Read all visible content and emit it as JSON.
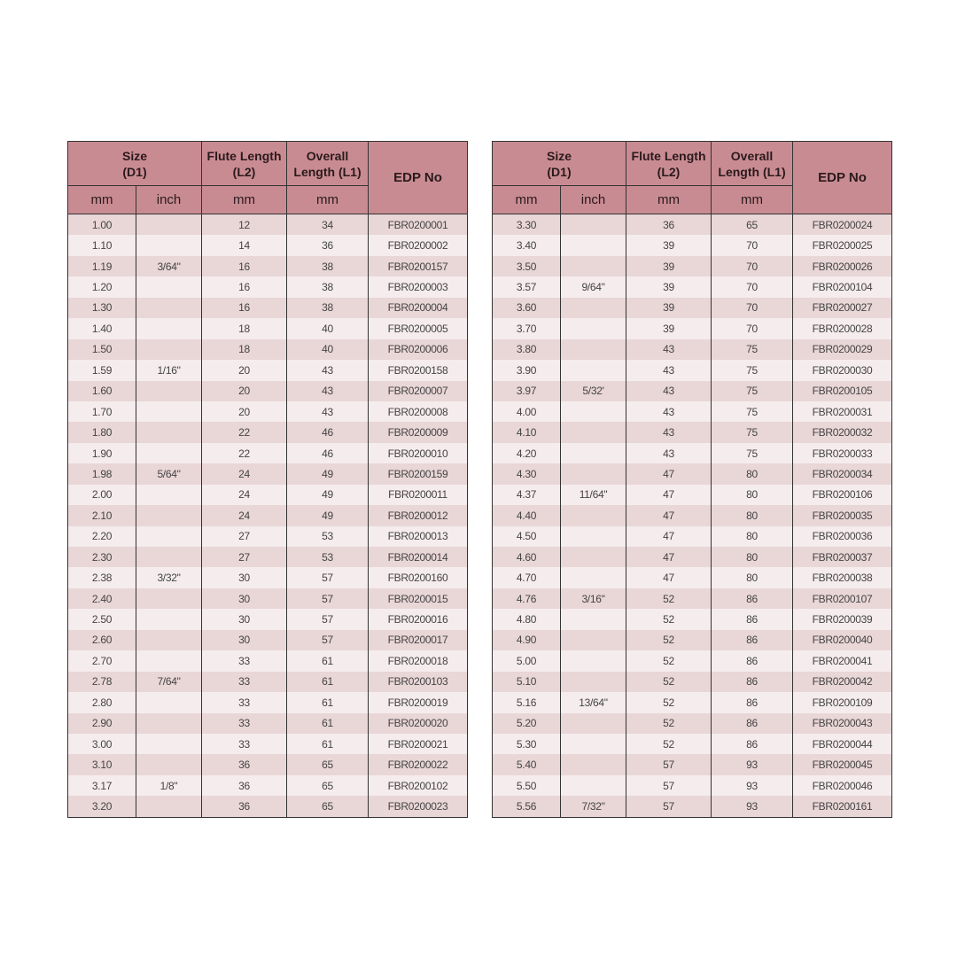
{
  "header": {
    "size": "Size",
    "size_sub": "(D1)",
    "flute": "Flute Length",
    "flute_sub": "(L2)",
    "overall": "Overall",
    "overall_sub": "Length (L1)",
    "edp": "EDP No",
    "mm": "mm",
    "inch": "inch"
  },
  "colors": {
    "header_bg": "#c98b92",
    "row_dark": "#e9d6d7",
    "row_light": "#f5eced"
  },
  "tables": [
    {
      "rows": [
        [
          "1.00",
          "",
          "12",
          "34",
          "FBR0200001"
        ],
        [
          "1.10",
          "",
          "14",
          "36",
          "FBR0200002"
        ],
        [
          "1.19",
          "3/64\"",
          "16",
          "38",
          "FBR0200157"
        ],
        [
          "1.20",
          "",
          "16",
          "38",
          "FBR0200003"
        ],
        [
          "1.30",
          "",
          "16",
          "38",
          "FBR0200004"
        ],
        [
          "1.40",
          "",
          "18",
          "40",
          "FBR0200005"
        ],
        [
          "1.50",
          "",
          "18",
          "40",
          "FBR0200006"
        ],
        [
          "1.59",
          "1/16\"",
          "20",
          "43",
          "FBR0200158"
        ],
        [
          "1.60",
          "",
          "20",
          "43",
          "FBR0200007"
        ],
        [
          "1.70",
          "",
          "20",
          "43",
          "FBR0200008"
        ],
        [
          "1.80",
          "",
          "22",
          "46",
          "FBR0200009"
        ],
        [
          "1.90",
          "",
          "22",
          "46",
          "FBR0200010"
        ],
        [
          "1.98",
          "5/64\"",
          "24",
          "49",
          "FBR0200159"
        ],
        [
          "2.00",
          "",
          "24",
          "49",
          "FBR0200011"
        ],
        [
          "2.10",
          "",
          "24",
          "49",
          "FBR0200012"
        ],
        [
          "2.20",
          "",
          "27",
          "53",
          "FBR0200013"
        ],
        [
          "2.30",
          "",
          "27",
          "53",
          "FBR0200014"
        ],
        [
          "2.38",
          "3/32\"",
          "30",
          "57",
          "FBR0200160"
        ],
        [
          "2.40",
          "",
          "30",
          "57",
          "FBR0200015"
        ],
        [
          "2.50",
          "",
          "30",
          "57",
          "FBR0200016"
        ],
        [
          "2.60",
          "",
          "30",
          "57",
          "FBR0200017"
        ],
        [
          "2.70",
          "",
          "33",
          "61",
          "FBR0200018"
        ],
        [
          "2.78",
          "7/64\"",
          "33",
          "61",
          "FBR0200103"
        ],
        [
          "2.80",
          "",
          "33",
          "61",
          "FBR0200019"
        ],
        [
          "2.90",
          "",
          "33",
          "61",
          "FBR0200020"
        ],
        [
          "3.00",
          "",
          "33",
          "61",
          "FBR0200021"
        ],
        [
          "3.10",
          "",
          "36",
          "65",
          "FBR0200022"
        ],
        [
          "3.17",
          "1/8\"",
          "36",
          "65",
          "FBR0200102"
        ],
        [
          "3.20",
          "",
          "36",
          "65",
          "FBR0200023"
        ]
      ]
    },
    {
      "rows": [
        [
          "3.30",
          "",
          "36",
          "65",
          "FBR0200024"
        ],
        [
          "3.40",
          "",
          "39",
          "70",
          "FBR0200025"
        ],
        [
          "3.50",
          "",
          "39",
          "70",
          "FBR0200026"
        ],
        [
          "3.57",
          "9/64\"",
          "39",
          "70",
          "FBR0200104"
        ],
        [
          "3.60",
          "",
          "39",
          "70",
          "FBR0200027"
        ],
        [
          "3.70",
          "",
          "39",
          "70",
          "FBR0200028"
        ],
        [
          "3.80",
          "",
          "43",
          "75",
          "FBR0200029"
        ],
        [
          "3.90",
          "",
          "43",
          "75",
          "FBR0200030"
        ],
        [
          "3.97",
          "5/32'",
          "43",
          "75",
          "FBR0200105"
        ],
        [
          "4.00",
          "",
          "43",
          "75",
          "FBR0200031"
        ],
        [
          "4.10",
          "",
          "43",
          "75",
          "FBR0200032"
        ],
        [
          "4.20",
          "",
          "43",
          "75",
          "FBR0200033"
        ],
        [
          "4.30",
          "",
          "47",
          "80",
          "FBR0200034"
        ],
        [
          "4.37",
          "11/64\"",
          "47",
          "80",
          "FBR0200106"
        ],
        [
          "4.40",
          "",
          "47",
          "80",
          "FBR0200035"
        ],
        [
          "4.50",
          "",
          "47",
          "80",
          "FBR0200036"
        ],
        [
          "4.60",
          "",
          "47",
          "80",
          "FBR0200037"
        ],
        [
          "4.70",
          "",
          "47",
          "80",
          "FBR0200038"
        ],
        [
          "4.76",
          "3/16\"",
          "52",
          "86",
          "FBR0200107"
        ],
        [
          "4.80",
          "",
          "52",
          "86",
          "FBR0200039"
        ],
        [
          "4.90",
          "",
          "52",
          "86",
          "FBR0200040"
        ],
        [
          "5.00",
          "",
          "52",
          "86",
          "FBR0200041"
        ],
        [
          "5.10",
          "",
          "52",
          "86",
          "FBR0200042"
        ],
        [
          "5.16",
          "13/64\"",
          "52",
          "86",
          "FBR0200109"
        ],
        [
          "5.20",
          "",
          "52",
          "86",
          "FBR0200043"
        ],
        [
          "5.30",
          "",
          "52",
          "86",
          "FBR0200044"
        ],
        [
          "5.40",
          "",
          "57",
          "93",
          "FBR0200045"
        ],
        [
          "5.50",
          "",
          "57",
          "93",
          "FBR0200046"
        ],
        [
          "5.56",
          "7/32\"",
          "57",
          "93",
          "FBR0200161"
        ]
      ]
    }
  ]
}
